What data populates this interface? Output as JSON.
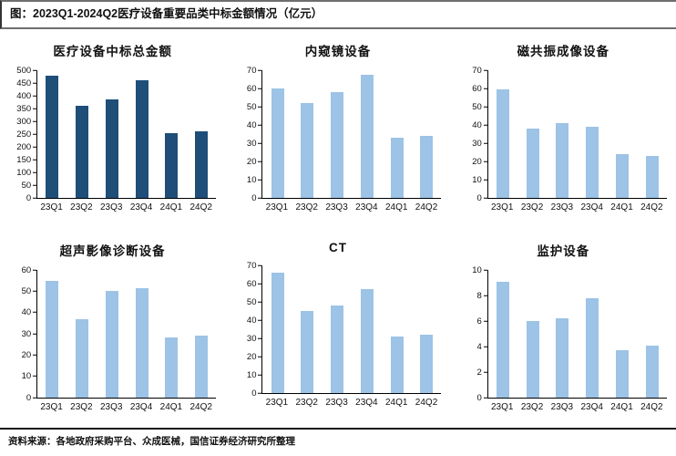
{
  "header": {
    "title": "图：2023Q1-2024Q2医疗设备重要品类中标金额情况（亿元）"
  },
  "footer": {
    "source": "资料来源：各地政府采购平台、众成医械，国信证券经济研究所整理"
  },
  "colors": {
    "dark_bar": "#1F4E79",
    "light_bar": "#9DC3E6",
    "axis": "#000000",
    "rule_gray": "#6e6e6e",
    "rule_black": "#1a1a1a"
  },
  "chart_data": [
    {
      "type": "bar",
      "title": "医疗设备中标总金额",
      "categories": [
        "23Q1",
        "23Q2",
        "23Q3",
        "23Q4",
        "24Q1",
        "24Q2"
      ],
      "values": [
        480,
        360,
        385,
        460,
        255,
        262
      ],
      "ylim": [
        0,
        500
      ],
      "ystep": 50,
      "bar_color": "#1F4E79",
      "unit": "亿元",
      "grid": false,
      "legend": "none"
    },
    {
      "type": "bar",
      "title": "内窥镜设备",
      "categories": [
        "23Q1",
        "23Q2",
        "23Q3",
        "23Q4",
        "24Q1",
        "24Q2"
      ],
      "values": [
        60,
        52,
        58,
        67.5,
        33,
        34
      ],
      "ylim": [
        0,
        70
      ],
      "ystep": 10,
      "bar_color": "#9DC3E6",
      "unit": "亿元",
      "grid": false,
      "legend": "none"
    },
    {
      "type": "bar",
      "title": "磁共振成像设备",
      "categories": [
        "23Q1",
        "23Q2",
        "23Q3",
        "23Q4",
        "24Q1",
        "24Q2"
      ],
      "values": [
        59.5,
        38,
        41,
        39,
        24,
        23
      ],
      "ylim": [
        0,
        70
      ],
      "ystep": 10,
      "bar_color": "#9DC3E6",
      "unit": "亿元",
      "grid": false,
      "legend": "none"
    },
    {
      "type": "bar",
      "title": "超声影像诊断设备",
      "categories": [
        "23Q1",
        "23Q2",
        "23Q3",
        "23Q4",
        "24Q1",
        "24Q2"
      ],
      "values": [
        55,
        37,
        50,
        51.5,
        28.5,
        29
      ],
      "ylim": [
        0,
        60
      ],
      "ystep": 10,
      "bar_color": "#9DC3E6",
      "unit": "亿元",
      "grid": false,
      "legend": "none"
    },
    {
      "type": "bar",
      "title": "CT",
      "categories": [
        "23Q1",
        "23Q2",
        "23Q3",
        "23Q4",
        "24Q1",
        "24Q2"
      ],
      "values": [
        66,
        45,
        48,
        57,
        31,
        32
      ],
      "ylim": [
        0,
        70
      ],
      "ystep": 10,
      "bar_color": "#9DC3E6",
      "unit": "亿元",
      "grid": false,
      "legend": "none"
    },
    {
      "type": "bar",
      "title": "监护设备",
      "categories": [
        "23Q1",
        "23Q2",
        "23Q3",
        "23Q4",
        "24Q1",
        "24Q2"
      ],
      "values": [
        9.1,
        6,
        6.2,
        7.8,
        3.7,
        4.1
      ],
      "ylim": [
        0,
        10
      ],
      "ystep": 2,
      "bar_color": "#9DC3E6",
      "unit": "亿元",
      "grid": false,
      "legend": "none"
    }
  ]
}
